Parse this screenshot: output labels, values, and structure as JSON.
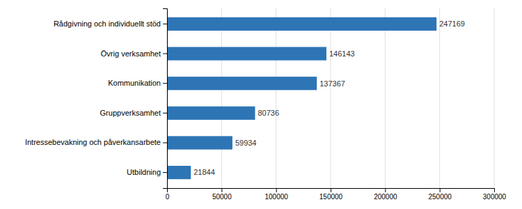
{
  "chart_data": {
    "type": "bar",
    "orientation": "horizontal",
    "categories": [
      "Rådgivning och individuellt stöd",
      "Övrig verksamhet",
      "Kommunikation",
      "Gruppverksamhet",
      "Intressebevakning och påverkansarbete",
      "Utbildning"
    ],
    "values": [
      247169,
      146143,
      137367,
      80736,
      59934,
      21844
    ],
    "color": "#2E75B6",
    "xlim": [
      0,
      300000
    ],
    "xticks": [
      0,
      50000,
      100000,
      150000,
      200000,
      250000,
      300000
    ],
    "grid": true,
    "data_labels": true
  }
}
